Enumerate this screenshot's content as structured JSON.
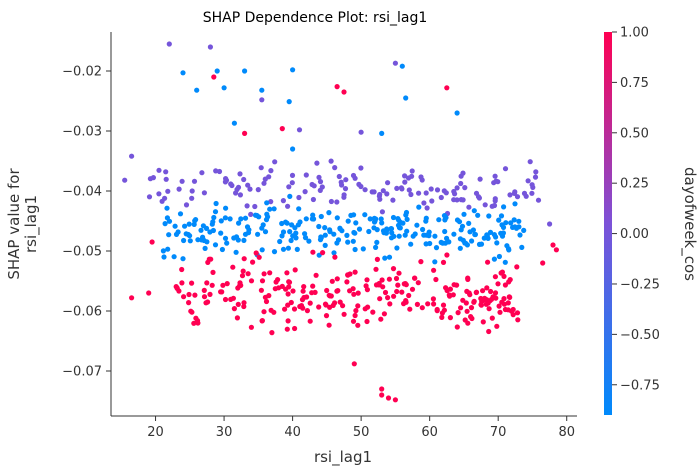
{
  "chart_data": {
    "type": "scatter",
    "title": "SHAP Dependence Plot: rsi_lag1",
    "xlabel": "rsi_lag1",
    "ylabel": "SHAP value for\nrsi_lag1",
    "xlim": [
      13.5,
      81.5
    ],
    "ylim": [
      -0.0775,
      -0.0135
    ],
    "x_ticks": [
      20,
      30,
      40,
      50,
      60,
      70,
      80
    ],
    "y_ticks": [
      -0.07,
      -0.06,
      -0.05,
      -0.04,
      -0.03,
      -0.02
    ],
    "x_tick_labels": [
      "20",
      "30",
      "40",
      "50",
      "60",
      "70",
      "80"
    ],
    "y_tick_labels": [
      "−0.07",
      "−0.06",
      "−0.05",
      "−0.04",
      "−0.03",
      "−0.02"
    ],
    "colorbar": {
      "label": "dayofweek_cos",
      "range": [
        -0.9,
        1.0
      ],
      "ticks": [
        1.0,
        0.75,
        0.5,
        0.25,
        0.0,
        -0.25,
        -0.5,
        -0.75
      ],
      "tick_labels": [
        "1.00",
        "0.75",
        "0.50",
        "0.25",
        "0.00",
        "−0.25",
        "−0.50",
        "−0.75"
      ],
      "colors": [
        "#008afb",
        "#7c52d8",
        "#ff0052"
      ]
    },
    "points_outliers": [
      {
        "x": 22.0,
        "y": -0.0155,
        "c": 0.0
      },
      {
        "x": 24.0,
        "y": -0.0203,
        "c": -0.9
      },
      {
        "x": 26.0,
        "y": -0.0232,
        "c": -0.9
      },
      {
        "x": 28.0,
        "y": -0.016,
        "c": 0.0
      },
      {
        "x": 29.0,
        "y": -0.02,
        "c": -0.9
      },
      {
        "x": 28.5,
        "y": -0.021,
        "c": 1.0
      },
      {
        "x": 30.0,
        "y": -0.0228,
        "c": -0.9
      },
      {
        "x": 33.0,
        "y": -0.02,
        "c": -0.9
      },
      {
        "x": 31.5,
        "y": -0.0287,
        "c": -0.9
      },
      {
        "x": 33.0,
        "y": -0.0304,
        "c": 1.0
      },
      {
        "x": 35.5,
        "y": -0.0232,
        "c": -0.9
      },
      {
        "x": 35.5,
        "y": -0.0248,
        "c": 0.0
      },
      {
        "x": 38.5,
        "y": -0.0296,
        "c": 1.0
      },
      {
        "x": 40.0,
        "y": -0.0198,
        "c": -0.9
      },
      {
        "x": 39.5,
        "y": -0.0251,
        "c": -0.9
      },
      {
        "x": 40.0,
        "y": -0.033,
        "c": -0.9
      },
      {
        "x": 41.0,
        "y": -0.0298,
        "c": 0.0
      },
      {
        "x": 46.5,
        "y": -0.0226,
        "c": 1.0
      },
      {
        "x": 47.5,
        "y": -0.0235,
        "c": 1.0
      },
      {
        "x": 50.0,
        "y": -0.0302,
        "c": 0.0
      },
      {
        "x": 53.0,
        "y": -0.0304,
        "c": -0.9
      },
      {
        "x": 55.0,
        "y": -0.0187,
        "c": 0.0
      },
      {
        "x": 56.0,
        "y": -0.0192,
        "c": -0.9
      },
      {
        "x": 56.5,
        "y": -0.0245,
        "c": -0.9
      },
      {
        "x": 62.5,
        "y": -0.0228,
        "c": 1.0
      },
      {
        "x": 64.0,
        "y": -0.027,
        "c": -0.9
      },
      {
        "x": 53.0,
        "y": -0.073,
        "c": 1.0
      },
      {
        "x": 54.0,
        "y": -0.0745,
        "c": 1.0
      },
      {
        "x": 55.0,
        "y": -0.0748,
        "c": 1.0
      },
      {
        "x": 53.0,
        "y": -0.074,
        "c": 1.0
      },
      {
        "x": 49.0,
        "y": -0.0688,
        "c": 1.0
      },
      {
        "x": 16.5,
        "y": -0.0578,
        "c": 1.0
      },
      {
        "x": 19.0,
        "y": -0.057,
        "c": 1.0
      },
      {
        "x": 15.5,
        "y": -0.0382,
        "c": 0.0
      },
      {
        "x": 16.5,
        "y": -0.0342,
        "c": 0.0
      },
      {
        "x": 19.5,
        "y": -0.0485,
        "c": 1.0
      },
      {
        "x": 77.5,
        "y": -0.0455,
        "c": 0.0
      },
      {
        "x": 78.0,
        "y": -0.049,
        "c": 1.0
      },
      {
        "x": 78.5,
        "y": -0.0498,
        "c": 1.0
      },
      {
        "x": 76.5,
        "y": -0.052,
        "c": 1.0
      }
    ],
    "bands": [
      {
        "c": 0.0,
        "y_center": -0.0395,
        "y_spread": 0.0038,
        "x_from": 19.0,
        "x_to": 76.0,
        "count": 150
      },
      {
        "c": -0.9,
        "y_center": -0.0465,
        "y_spread": 0.0042,
        "x_from": 21.0,
        "x_to": 74.0,
        "count": 260
      },
      {
        "c": 1.0,
        "y_center": -0.0575,
        "y_spread": 0.0058,
        "x_from": 23.0,
        "x_to": 73.0,
        "count": 270
      }
    ]
  }
}
